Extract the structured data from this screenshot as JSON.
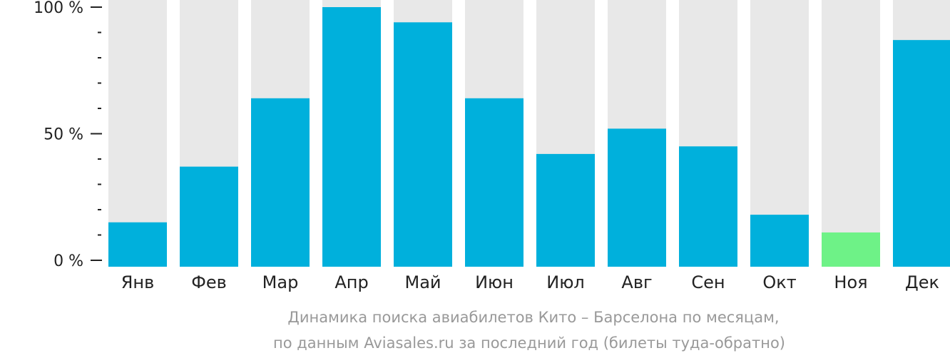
{
  "chart_data": {
    "type": "bar",
    "categories": [
      "Янв",
      "Фев",
      "Мар",
      "Апр",
      "Май",
      "Июн",
      "Июл",
      "Авг",
      "Сен",
      "Окт",
      "Ноя",
      "Дек"
    ],
    "values": [
      15,
      37,
      64,
      100,
      94,
      64,
      42,
      52,
      45,
      18,
      11,
      87
    ],
    "ylim": [
      0,
      100
    ],
    "y_ticks": [
      {
        "value": 0,
        "label": "0 %"
      },
      {
        "value": 50,
        "label": "50 %"
      },
      {
        "value": 100,
        "label": "100 %"
      }
    ],
    "minor_tick_step": 10,
    "caption_line1": "Динамика поиска авиабилетов Кито – Барселона по месяцам,",
    "caption_line2": "по данным Aviasales.ru за последний год (билеты туда-обратно)",
    "highlight_index": 10,
    "colors": {
      "bar": "#00b0dc",
      "highlight": "#6ef287",
      "background_bar": "#e8e8e8",
      "axis": "#222222",
      "caption": "#999999"
    }
  }
}
